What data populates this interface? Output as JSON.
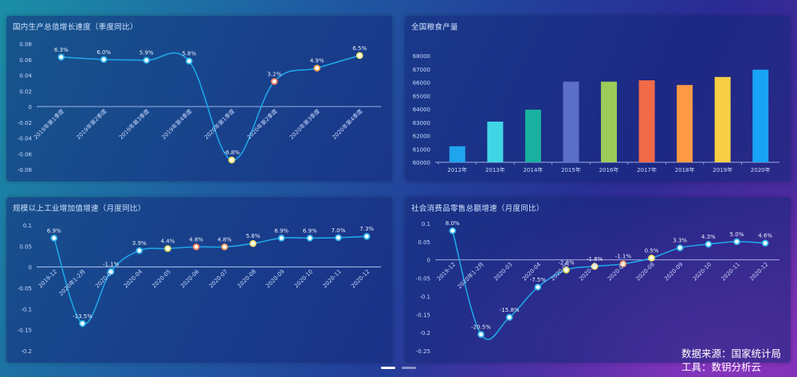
{
  "footer": {
    "source": "数据来源：国家统计局",
    "tool": "工具：数钥分析云"
  },
  "colors": {
    "line": "#1ea5e6",
    "axis": "#c9d9ff",
    "label": "#e8f0ff"
  },
  "chart_data": [
    {
      "id": "gdp",
      "type": "line",
      "title": "国内生产总值增长速度（季度同比）",
      "categories": [
        "2019年第1季度",
        "2019年第2季度",
        "2019年第3季度",
        "2019年第4季度",
        "2020年第1季度",
        "2020年第2季度",
        "2020年第3季度",
        "2020年第4季度"
      ],
      "values": [
        0.063,
        0.06,
        0.059,
        0.058,
        -0.068,
        0.032,
        0.049,
        0.065
      ],
      "data_labels": [
        "6.3%",
        "6.0%",
        "5.9%",
        "5.8%",
        "-6.8%",
        "3.2%",
        "4.9%",
        "6.5%"
      ],
      "marker_colors": [
        "#36b8f0",
        "#36b8f0",
        "#36b8f0",
        "#36b8f0",
        "#f0e060",
        "#ff7b5a",
        "#ffa44a",
        "#f4e36a"
      ],
      "yticks": [
        0.08,
        0.06,
        0.04,
        0.02,
        0,
        -0.02,
        -0.04,
        -0.06,
        -0.08
      ],
      "ytick_labels": [
        "0.08",
        "0.06",
        "0.04",
        "0.02",
        "0",
        "-0.02",
        "-0.04",
        "-0.06",
        "-0.08"
      ],
      "ylim": [
        -0.08,
        0.08
      ],
      "smooth": true
    },
    {
      "id": "grain",
      "type": "bar",
      "title": "全国粮食产量",
      "categories": [
        "2012年",
        "2013年",
        "2014年",
        "2015年",
        "2016年",
        "2017年",
        "2018年",
        "2019年",
        "2020年"
      ],
      "values": [
        61200,
        63050,
        63950,
        66050,
        66050,
        66150,
        65800,
        66400,
        66950
      ],
      "bar_colors": [
        "#20a4ee",
        "#41d6e6",
        "#1ab0a0",
        "#5b6ec8",
        "#9ccb58",
        "#f06a48",
        "#ff9a45",
        "#f6cf45",
        "#1aa3f5"
      ],
      "yticks": [
        68000,
        67000,
        66000,
        65000,
        64000,
        63000,
        62000,
        61000,
        60000
      ],
      "ytick_labels": [
        "68000",
        "67000",
        "66000",
        "65000",
        "64000",
        "63000",
        "62000",
        "61000",
        "60000"
      ],
      "ylim": [
        60000,
        68000
      ]
    },
    {
      "id": "industry",
      "type": "line",
      "title": "规模以上工业增加值增速（月度同比）",
      "categories": [
        "2019-12",
        "2020年1-2月",
        "2020-03",
        "2020-04",
        "2020-05",
        "2020-06",
        "2020-07",
        "2020-08",
        "2020-09",
        "2020-10",
        "2020-11",
        "2020-12"
      ],
      "values": [
        0.069,
        -0.135,
        -0.011,
        0.039,
        0.044,
        0.048,
        0.048,
        0.056,
        0.069,
        0.069,
        0.07,
        0.073
      ],
      "data_labels": [
        "6.9%",
        "-13.5%",
        "-1.1%",
        "3.9%",
        "4.4%",
        "4.8%",
        "4.8%",
        "5.6%",
        "6.9%",
        "6.9%",
        "7.0%",
        "7.3%"
      ],
      "marker_colors": [
        "#36b8f0",
        "#36b8f0",
        "#36b8f0",
        "#36b8f0",
        "#e6e060",
        "#ff7b5a",
        "#ff9a55",
        "#f4e36a",
        "#36b8f0",
        "#36b8f0",
        "#36b8f0",
        "#36b8f0"
      ],
      "yticks": [
        0.1,
        0.05,
        0,
        -0.05,
        -0.1,
        -0.15,
        -0.2
      ],
      "ytick_labels": [
        "0.1",
        "0.05",
        "0",
        "-0.05",
        "-0.1",
        "-0.15",
        "-0.2"
      ],
      "ylim": [
        -0.2,
        0.1
      ],
      "smooth": true
    },
    {
      "id": "retail",
      "type": "line",
      "title": "社会消费品零售总额增速（月度同比）",
      "categories": [
        "2019-12",
        "2020年1-2月",
        "2020-03",
        "2020-04",
        "2020-05",
        "2020-06",
        "2020-07",
        "2020-08",
        "2020-09",
        "2020-10",
        "2020-11",
        "2020-12"
      ],
      "values": [
        0.08,
        -0.205,
        -0.158,
        -0.075,
        -0.028,
        -0.018,
        -0.011,
        0.005,
        0.033,
        0.043,
        0.05,
        0.046
      ],
      "data_labels": [
        "8.0%",
        "-20.5%",
        "-15.8%",
        "-7.5%",
        "-2.8%",
        "-1.8%",
        "-1.1%",
        "0.5%",
        "3.3%",
        "4.3%",
        "5.0%",
        "4.6%"
      ],
      "marker_colors": [
        "#36b8f0",
        "#36b8f0",
        "#36b8f0",
        "#36b8f0",
        "#e6e060",
        "#f0e060",
        "#ff9a55",
        "#f4e36a",
        "#36b8f0",
        "#36b8f0",
        "#36b8f0",
        "#36b8f0"
      ],
      "yticks": [
        0.1,
        0.05,
        0,
        -0.05,
        -0.1,
        -0.15,
        -0.2,
        -0.25
      ],
      "ytick_labels": [
        "0.1",
        "0.05",
        "0",
        "-0.05",
        "-0.1",
        "-0.15",
        "-0.2",
        "-0.25"
      ],
      "ylim": [
        -0.25,
        0.1
      ],
      "smooth": true
    }
  ]
}
